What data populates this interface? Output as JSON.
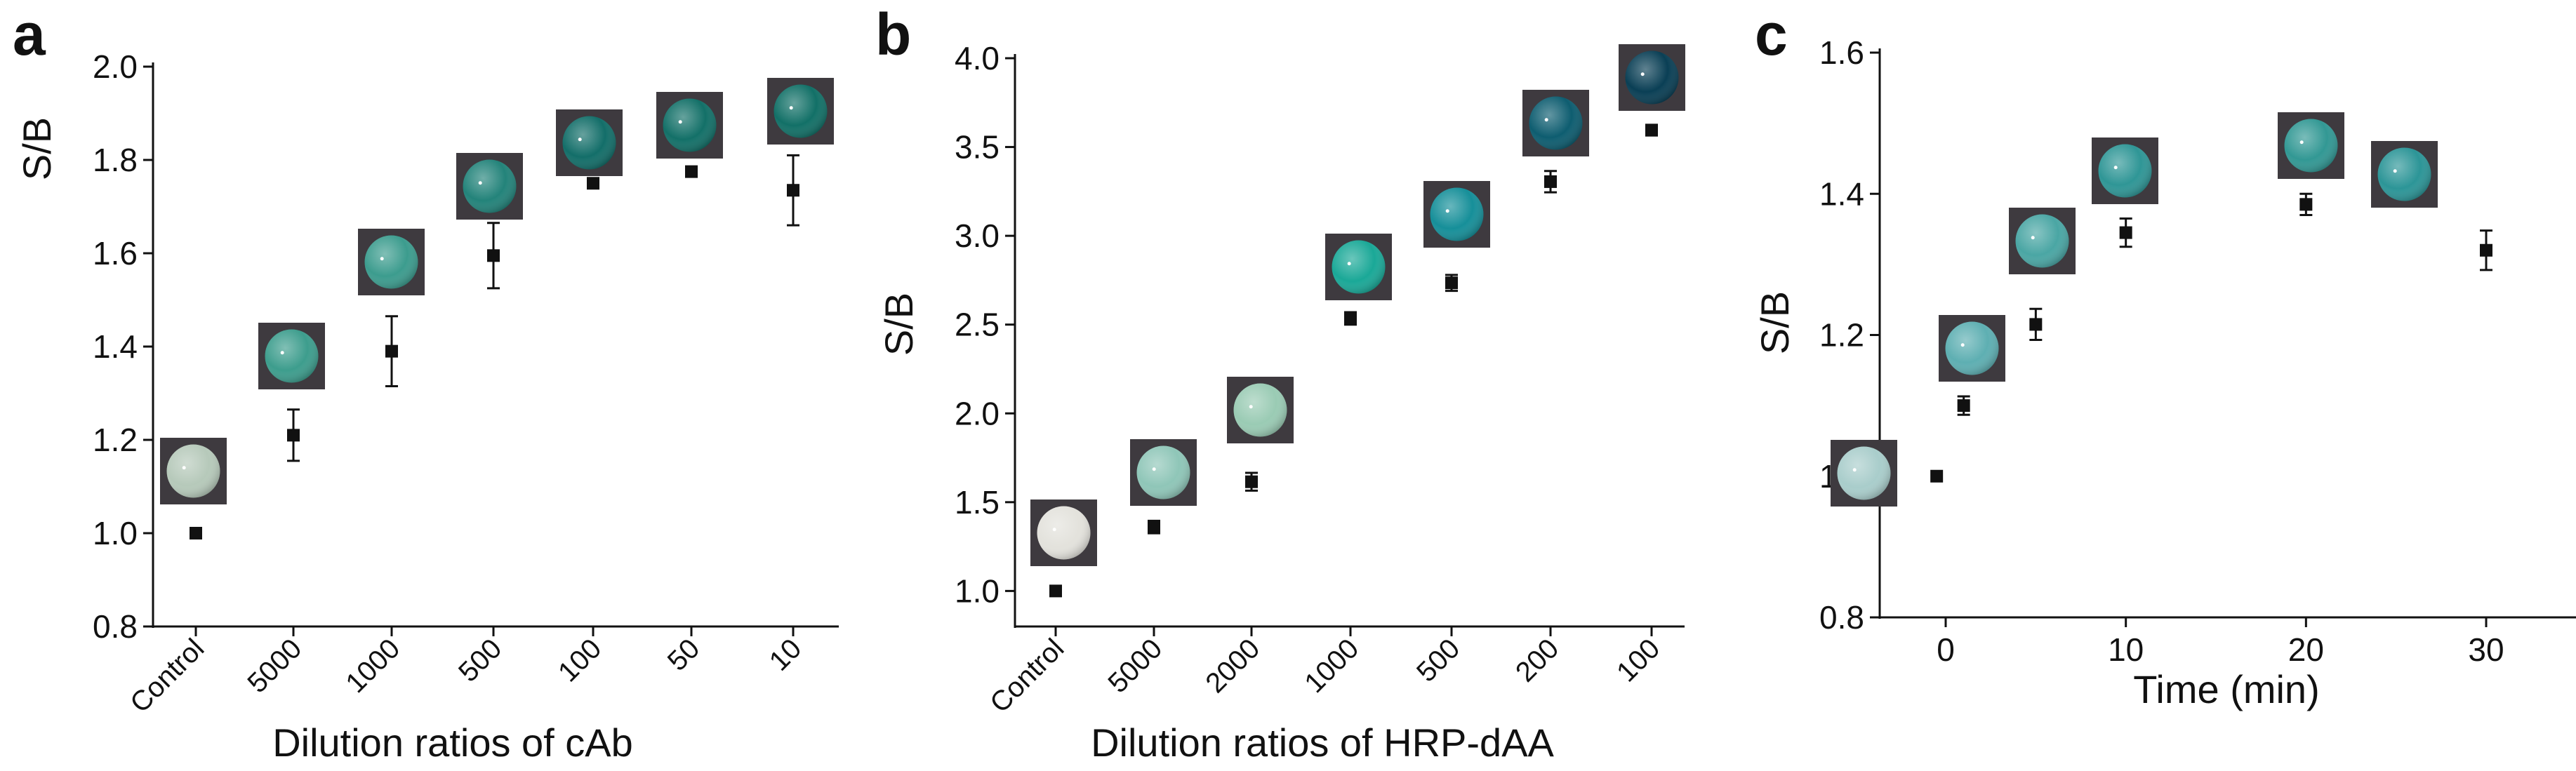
{
  "colors": {
    "axis": "#111111",
    "marker": "#111111",
    "well_frame": "#3e3a3f",
    "well_light": "#e7ebe0",
    "well_dark": "#073542"
  },
  "panels": [
    {
      "letter": "a",
      "xlabel": "Dilution ratios of cAb",
      "ylabel": "S/B",
      "yticks": [
        "0.8",
        "1.0",
        "1.2",
        "1.4",
        "1.6",
        "1.8",
        "2.0"
      ],
      "xticks": [
        "Control",
        "5000",
        "1000",
        "500",
        "100",
        "50",
        "10"
      ]
    },
    {
      "letter": "b",
      "xlabel": "Dilution ratios of HRP-dAA",
      "ylabel": "S/B",
      "yticks": [
        "1.0",
        "1.5",
        "2.0",
        "2.5",
        "3.0",
        "3.5",
        "4.0"
      ],
      "xticks": [
        "Control",
        "5000",
        "2000",
        "1000",
        "500",
        "200",
        "100"
      ]
    },
    {
      "letter": "c",
      "xlabel": "Time (min)",
      "ylabel": "S/B",
      "yticks": [
        "0.8",
        "1.0",
        "1.2",
        "1.4",
        "1.6"
      ],
      "xticks": [
        "0",
        "10",
        "20",
        "30"
      ]
    }
  ],
  "chart_data": [
    {
      "type": "scatter",
      "categories": [
        "Control",
        "5000",
        "1000",
        "500",
        "100",
        "50",
        "10"
      ],
      "series": [
        {
          "values": [
            1.0,
            1.21,
            1.39,
            1.595,
            1.75,
            1.775,
            1.735
          ],
          "errors": [
            0.0,
            0.055,
            0.075,
            0.07,
            0.0,
            0.0,
            0.075
          ],
          "well_colors": [
            "#b6c9ba",
            "#3d9d8d",
            "#3c9c8e",
            "#23837a",
            "#136e69",
            "#137068",
            "#127067"
          ]
        }
      ],
      "xlabel": "Dilution ratios of cAb",
      "ylabel": "S/B",
      "ylim": [
        0.8,
        2.0
      ],
      "grid": false
    },
    {
      "type": "scatter",
      "categories": [
        "Control",
        "5000",
        "2000",
        "1000",
        "500",
        "200",
        "100"
      ],
      "series": [
        {
          "values": [
            1.0,
            1.36,
            1.615,
            2.535,
            2.735,
            3.305,
            3.595
          ],
          "errors": [
            0.0,
            0.035,
            0.05,
            0.035,
            0.045,
            0.06,
            0.03
          ],
          "well_colors": [
            "#e3e2dc",
            "#8fc6b8",
            "#9acbb4",
            "#1aa897",
            "#168f99",
            "#0e5d70",
            "#0a3f55"
          ]
        }
      ],
      "xlabel": "Dilution ratios of HRP-dAA",
      "ylabel": "S/B",
      "ylim": [
        0.8,
        4.0
      ],
      "grid": false
    },
    {
      "type": "scatter",
      "x": [
        -0.5,
        1,
        5,
        10,
        20,
        30
      ],
      "series": [
        {
          "values": [
            1.0,
            1.1,
            1.215,
            1.345,
            1.385,
            1.32
          ],
          "errors": [
            0.0,
            0.013,
            0.022,
            0.02,
            0.015,
            0.028
          ],
          "well_colors": [
            "#a9cdcb",
            "#5eafb2",
            "#4aa6a4",
            "#2f9696",
            "#329894",
            "#2c9597"
          ]
        }
      ],
      "xlabel": "Time (min)",
      "ylabel": "S/B",
      "xlim": [
        -5,
        35
      ],
      "ylim": [
        0.8,
        1.6
      ],
      "grid": false
    }
  ]
}
